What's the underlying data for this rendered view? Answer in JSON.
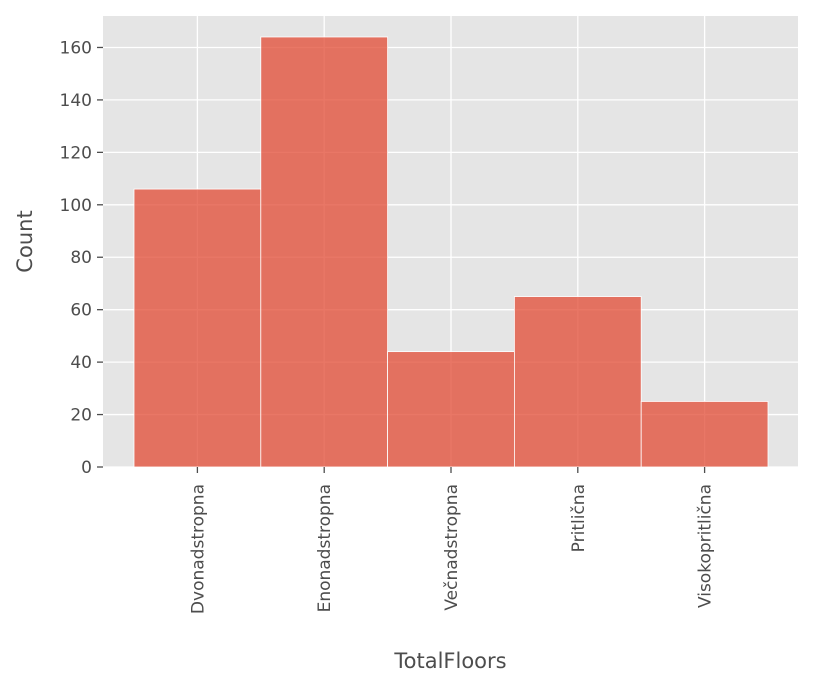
{
  "chart_data": {
    "type": "bar",
    "categories": [
      "Dvonadstropna",
      "Enonadstropna",
      "Večnadstropna",
      "Pritlična",
      "Visokopritlična"
    ],
    "values": [
      106,
      164,
      44,
      65,
      25
    ],
    "title": "",
    "xlabel": "TotalFloors",
    "ylabel": "Count",
    "ylim": [
      0,
      172
    ],
    "yticks": [
      0,
      20,
      40,
      60,
      80,
      100,
      120,
      140,
      160
    ],
    "grid": true,
    "colors": {
      "bar": "#e24a33",
      "background": "#e5e5e5",
      "grid": "#ffffff",
      "text": "#4d4d4d"
    }
  }
}
